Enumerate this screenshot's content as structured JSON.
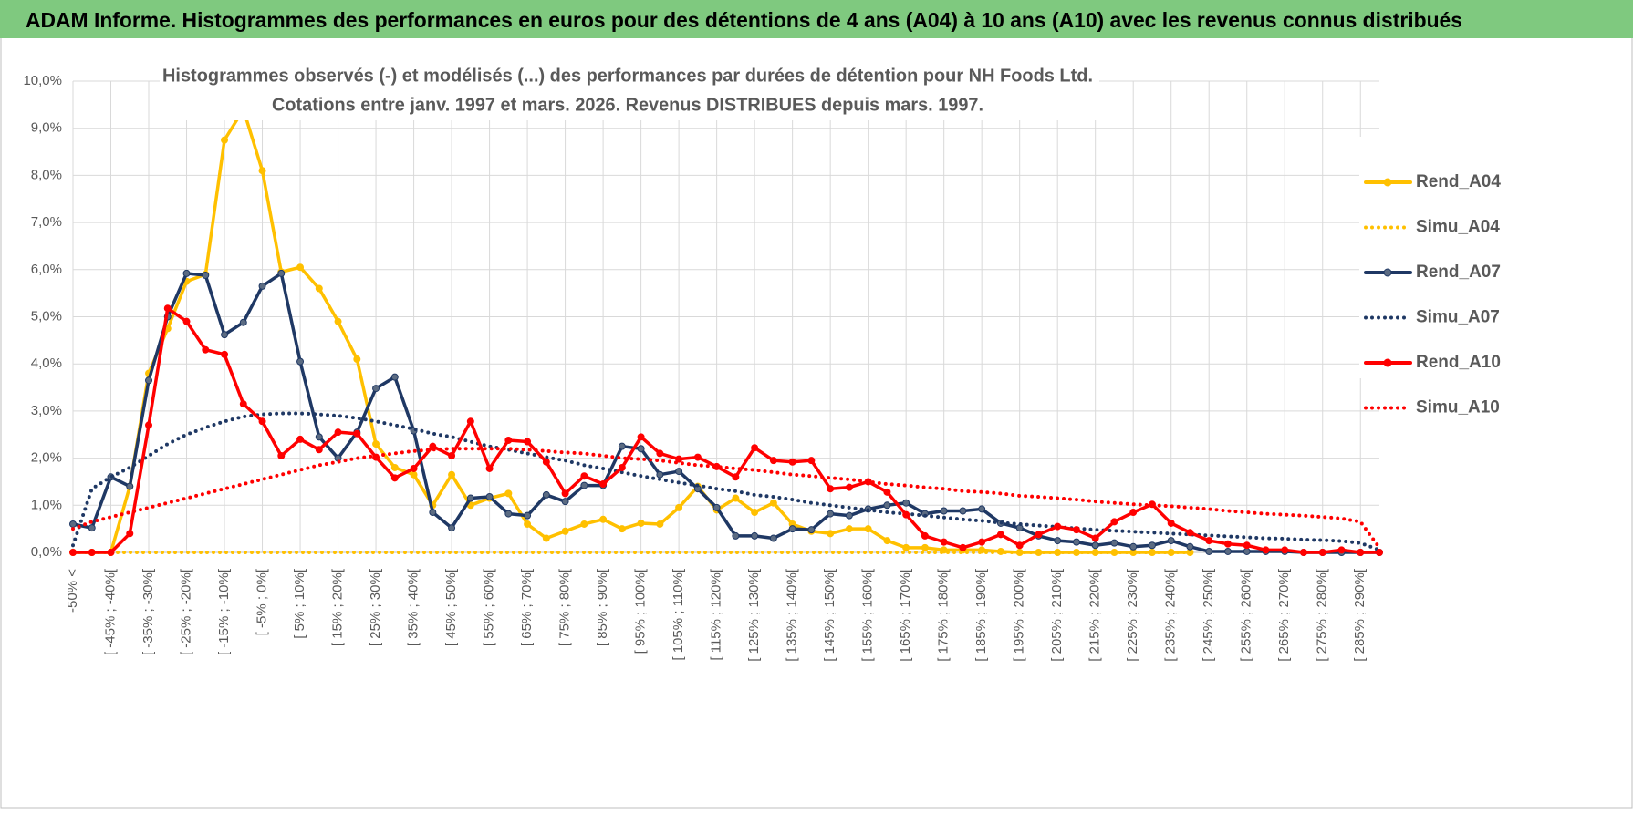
{
  "chart_data": {
    "type": "line",
    "header": "ADAM Informe. Histogrammes des performances en euros pour des détentions de 4 ans (A04) à 10 ans (A10) avec les revenus connus distribués",
    "title": "Histogrammes observés (-) et modélisés (...) des performances par durées de détention pour NH Foods Ltd.",
    "subtitle": "Cotations entre janv. 1997 et mars. 2026. Revenus DISTRIBUES depuis mars. 1997.",
    "categories": [
      "-50% <",
      null,
      "[ -45% ; -40%[",
      null,
      "[ -35% ; -30%[",
      null,
      "[ -25% ; -20%[",
      null,
      "[ -15% ; -10%[",
      null,
      "[ -5% ; 0%[",
      null,
      "[ 5% ; 10%[",
      null,
      "[ 15% ; 20%[",
      null,
      "[ 25% ; 30%[",
      null,
      "[ 35% ; 40%[",
      null,
      "[ 45% ; 50%[",
      null,
      "[ 55% ; 60%[",
      null,
      "[ 65% ; 70%[",
      null,
      "[ 75% ; 80%[",
      null,
      "[ 85% ; 90%[",
      null,
      "[ 95% ; 100%[",
      null,
      "[ 105% ; 110%[",
      null,
      "[ 115% ; 120%[",
      null,
      "[ 125% ; 130%[",
      null,
      "[ 135% ; 140%[",
      null,
      "[ 145% ; 150%[",
      null,
      "[ 155% ; 160%[",
      null,
      "[ 165% ; 170%[",
      null,
      "[ 175% ; 180%[",
      null,
      "[ 185% ; 190%[",
      null,
      "[ 195% ; 200%[",
      null,
      "[ 205% ; 210%[",
      null,
      "[ 215% ; 220%[",
      null,
      "[ 225% ; 230%[",
      null,
      "[ 235% ; 240%[",
      null,
      "[ 245% ; 250%[",
      null,
      "[ 255% ; 260%[",
      null,
      "[ 265% ; 270%[",
      null,
      "[ 275% ; 280%[",
      null,
      "[ 285% ; 290%[",
      null
    ],
    "ylim": [
      0,
      10
    ],
    "yticks": [
      {
        "value": 0,
        "label": "0,0%"
      },
      {
        "value": 1,
        "label": "1,0%"
      },
      {
        "value": 2,
        "label": "2,0%"
      },
      {
        "value": 3,
        "label": "3,0%"
      },
      {
        "value": 4,
        "label": "4,0%"
      },
      {
        "value": 5,
        "label": "5,0%"
      },
      {
        "value": 6,
        "label": "6,0%"
      },
      {
        "value": 7,
        "label": "7,0%"
      },
      {
        "value": 8,
        "label": "8,0%"
      },
      {
        "value": 9,
        "label": "9,0%"
      },
      {
        "value": 10,
        "label": "10,0%"
      }
    ],
    "grid": true,
    "legend": "right",
    "series": [
      {
        "name": "Rend_A04",
        "color": "#ffc000",
        "style": "solid",
        "markers": true,
        "values": [
          0,
          0,
          0,
          1.4,
          3.8,
          4.75,
          5.75,
          5.9,
          8.75,
          9.4,
          8.1,
          5.95,
          6.05,
          5.6,
          4.9,
          4.1,
          2.3,
          1.8,
          1.65,
          1.0,
          1.65,
          1.0,
          1.15,
          1.25,
          0.6,
          0.3,
          0.45,
          0.6,
          0.7,
          0.5,
          0.62,
          0.6,
          0.95,
          1.4,
          0.9,
          1.15,
          0.85,
          1.05,
          0.6,
          0.45,
          0.4,
          0.5,
          0.5,
          0.25,
          0.1,
          0.1,
          0.05,
          0.05,
          0.05,
          0.02,
          0,
          0,
          0,
          0,
          0,
          0,
          0,
          0,
          0,
          0,
          null,
          null,
          null,
          null,
          null,
          null,
          null,
          null,
          null,
          null
        ]
      },
      {
        "name": "Simu_A04",
        "color": "#ffc000",
        "style": "dotted",
        "markers": false,
        "values": [
          0,
          0,
          0,
          0,
          0,
          0,
          0,
          0,
          0,
          0,
          0,
          0,
          0,
          0,
          0,
          0,
          0,
          0,
          0,
          0,
          0,
          0,
          0,
          0,
          0,
          0,
          0,
          0,
          0,
          0,
          0,
          0,
          0,
          0,
          0,
          0,
          0,
          0,
          0,
          0,
          0,
          0,
          0,
          0,
          0,
          0,
          0,
          0,
          0,
          0,
          0,
          0,
          0,
          0,
          0,
          0,
          0,
          0,
          0,
          0,
          null,
          null,
          null,
          null,
          null,
          null,
          null,
          null,
          null,
          null
        ]
      },
      {
        "name": "Rend_A07",
        "color": "#1f3864",
        "style": "solid",
        "markers": true,
        "values": [
          0.6,
          0.52,
          1.6,
          1.4,
          3.65,
          5.0,
          5.92,
          5.88,
          4.62,
          4.88,
          5.65,
          5.92,
          4.05,
          2.45,
          2.0,
          2.55,
          3.48,
          3.72,
          2.58,
          0.85,
          0.52,
          1.15,
          1.18,
          0.82,
          0.78,
          1.22,
          1.08,
          1.42,
          1.42,
          2.25,
          2.2,
          1.65,
          1.72,
          1.35,
          0.95,
          0.35,
          0.35,
          0.3,
          0.5,
          0.48,
          0.82,
          0.78,
          0.92,
          1.0,
          1.05,
          0.82,
          0.88,
          0.88,
          0.92,
          0.62,
          0.52,
          0.35,
          0.25,
          0.22,
          0.15,
          0.2,
          0.12,
          0.15,
          0.25,
          0.12,
          0.02,
          0.02,
          0.02,
          0.02,
          0.02,
          0,
          0,
          0,
          0,
          0
        ]
      },
      {
        "name": "Simu_A07",
        "color": "#1f3864",
        "style": "dotted",
        "markers": false,
        "values": [
          0.15,
          1.35,
          1.6,
          1.8,
          2.05,
          2.3,
          2.5,
          2.65,
          2.78,
          2.88,
          2.93,
          2.95,
          2.95,
          2.93,
          2.9,
          2.85,
          2.78,
          2.7,
          2.62,
          2.52,
          2.45,
          2.35,
          2.25,
          2.18,
          2.1,
          2.02,
          1.95,
          1.85,
          1.78,
          1.7,
          1.62,
          1.55,
          1.48,
          1.42,
          1.35,
          1.3,
          1.22,
          1.18,
          1.12,
          1.05,
          1.0,
          0.95,
          0.9,
          0.85,
          0.82,
          0.78,
          0.74,
          0.7,
          0.67,
          0.63,
          0.6,
          0.57,
          0.54,
          0.51,
          0.48,
          0.46,
          0.44,
          0.42,
          0.4,
          0.38,
          0.36,
          0.34,
          0.32,
          0.3,
          0.29,
          0.27,
          0.26,
          0.24,
          0.2,
          0.05
        ]
      },
      {
        "name": "Rend_A10",
        "color": "#ff0000",
        "style": "solid",
        "markers": true,
        "values": [
          0,
          0,
          0,
          0.4,
          2.7,
          5.18,
          4.9,
          4.3,
          4.2,
          3.15,
          2.78,
          2.05,
          2.4,
          2.18,
          2.55,
          2.52,
          2.02,
          1.58,
          1.78,
          2.25,
          2.05,
          2.78,
          1.78,
          2.38,
          2.35,
          1.92,
          1.25,
          1.62,
          1.45,
          1.8,
          2.45,
          2.1,
          1.98,
          2.02,
          1.82,
          1.6,
          2.22,
          1.95,
          1.92,
          1.95,
          1.35,
          1.38,
          1.5,
          1.28,
          0.8,
          0.35,
          0.22,
          0.1,
          0.22,
          0.38,
          0.15,
          0.38,
          0.55,
          0.48,
          0.3,
          0.65,
          0.85,
          1.02,
          0.62,
          0.42,
          0.25,
          0.18,
          0.15,
          0.05,
          0.05,
          0,
          0,
          0.05,
          0,
          0
        ]
      },
      {
        "name": "Simu_A10",
        "color": "#ff0000",
        "style": "dotted",
        "markers": false,
        "values": [
          0.5,
          0.65,
          0.75,
          0.85,
          0.95,
          1.05,
          1.15,
          1.25,
          1.35,
          1.45,
          1.55,
          1.65,
          1.75,
          1.85,
          1.92,
          2.0,
          2.05,
          2.1,
          2.15,
          2.18,
          2.2,
          2.2,
          2.2,
          2.2,
          2.18,
          2.15,
          2.12,
          2.1,
          2.05,
          2.0,
          1.98,
          1.95,
          1.9,
          1.85,
          1.82,
          1.78,
          1.75,
          1.7,
          1.65,
          1.62,
          1.58,
          1.55,
          1.5,
          1.45,
          1.42,
          1.38,
          1.35,
          1.3,
          1.28,
          1.25,
          1.2,
          1.18,
          1.15,
          1.12,
          1.08,
          1.05,
          1.02,
          1.0,
          0.98,
          0.95,
          0.92,
          0.88,
          0.85,
          0.82,
          0.8,
          0.78,
          0.75,
          0.72,
          0.65,
          0.1
        ]
      }
    ]
  }
}
